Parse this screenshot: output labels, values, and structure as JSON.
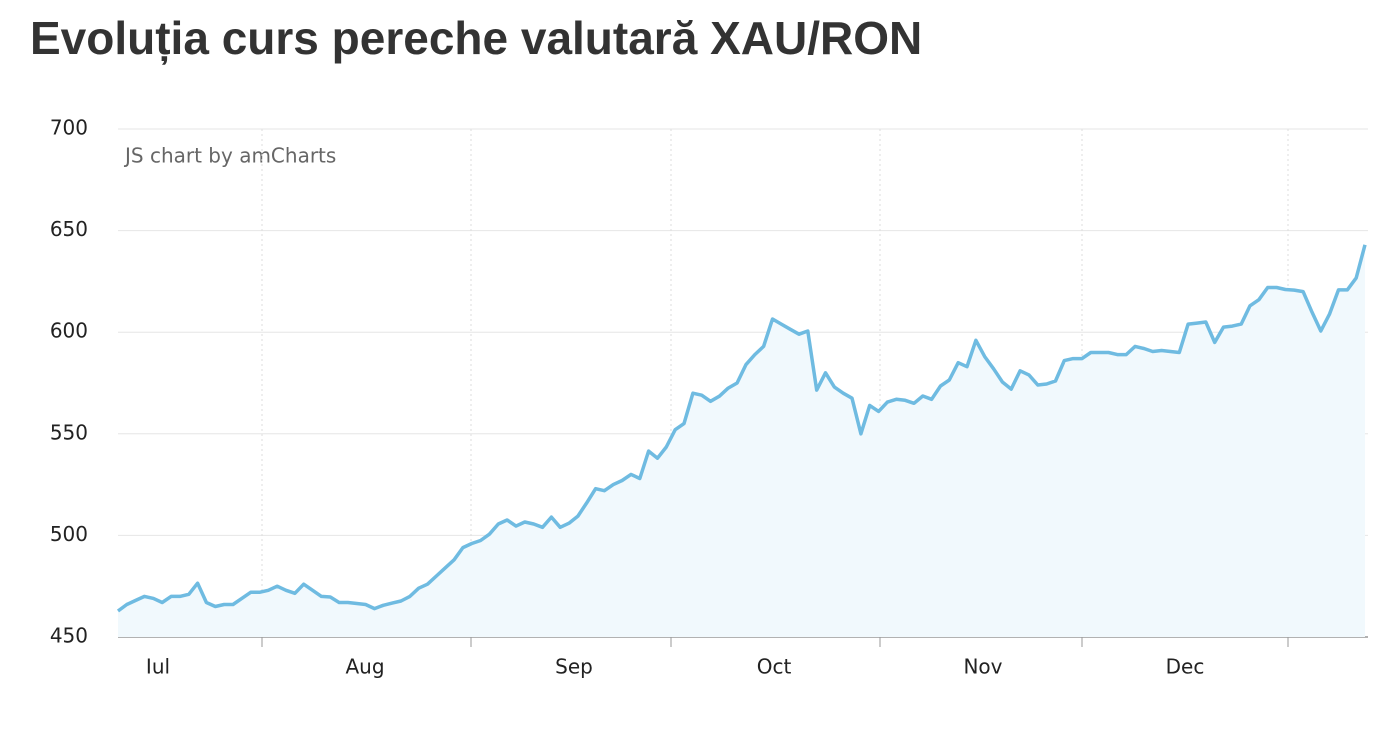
{
  "chart_data": {
    "type": "area",
    "title": "Evoluția curs pereche valutară XAU/RON",
    "credit": "JS chart by amCharts",
    "months": [
      "Iul",
      "Aug",
      "Sep",
      "Oct",
      "Nov",
      "Dec"
    ],
    "ylim": [
      450,
      700
    ],
    "yticks": [
      450,
      500,
      550,
      600,
      650,
      700
    ],
    "grid": true,
    "series": [
      {
        "color": "#6fbbe1",
        "values": [
          462.8,
          466,
          468,
          470,
          469,
          467,
          470,
          470,
          471,
          476.5,
          467,
          465,
          466,
          466,
          469,
          472,
          472,
          473,
          475,
          473,
          471.5,
          476,
          473,
          470,
          469.7,
          467,
          467,
          466.5,
          466,
          464,
          465.6,
          466.7,
          467.7,
          470,
          474,
          476,
          480,
          484,
          488,
          494,
          496,
          497.5,
          500.6,
          505.6,
          507.6,
          504.6,
          506.6,
          505.6,
          504,
          509,
          504,
          506,
          509.5,
          516,
          523,
          522,
          525,
          527,
          530,
          528,
          541.5,
          538,
          543.5,
          552,
          555,
          570,
          569,
          566,
          568.5,
          572.5,
          575,
          584,
          589,
          593,
          606.5,
          604,
          601.5,
          599,
          600.6,
          571.5,
          580,
          573,
          570,
          567.5,
          550,
          564,
          561,
          565.6,
          567,
          566.5,
          565,
          568.6,
          567,
          573.5,
          576.5,
          585,
          583,
          596,
          588,
          582,
          575.5,
          572,
          581,
          579,
          574,
          574.5,
          576,
          586,
          587,
          587,
          590,
          590,
          590,
          589,
          589,
          593,
          592,
          590.5,
          591,
          590.5,
          590,
          604,
          604.5,
          605,
          595,
          602.5,
          603,
          604,
          613,
          616,
          622,
          622,
          621,
          620.7,
          620,
          610,
          600.6,
          609,
          620.8,
          620.8,
          626.7,
          643
        ]
      }
    ]
  }
}
